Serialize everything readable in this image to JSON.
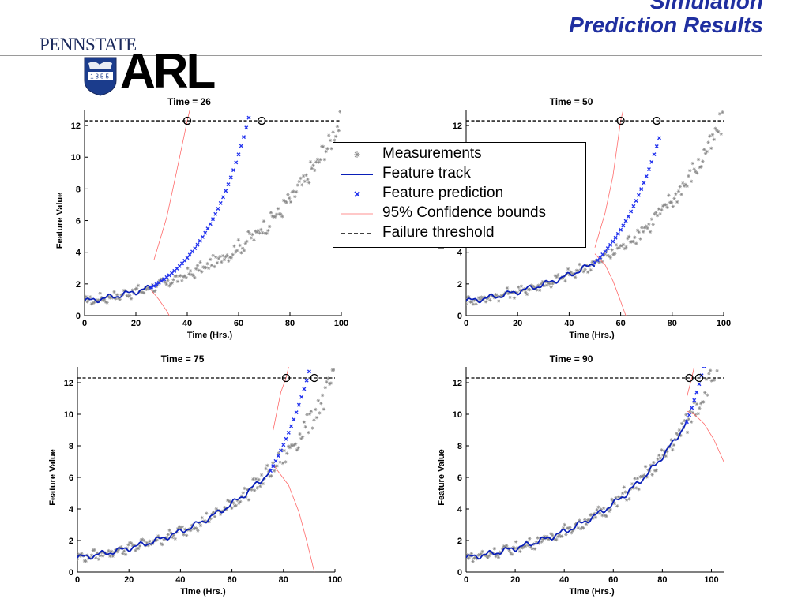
{
  "header": {
    "title_line1": "Simulation",
    "title_line2": "Prediction Results"
  },
  "logos": {
    "pennstate": "PENNSTATE",
    "shield_year": "1855",
    "arl": "ARL"
  },
  "colors": {
    "title": "#1f2fa0",
    "measurements": "#8a8a8a",
    "track": "#0a1fb8",
    "prediction": "#2233ee",
    "confidence": "#ff6b6b",
    "threshold": "#000000"
  },
  "legend": {
    "items": [
      {
        "label": "Measurements",
        "symbol": "star-marker"
      },
      {
        "label": "Feature track",
        "symbol": "solid-line"
      },
      {
        "label": "Feature prediction",
        "symbol": "x-marker"
      },
      {
        "label": "95% Confidence bounds",
        "symbol": "thin-line"
      },
      {
        "label": "Failure threshold",
        "symbol": "dashed-line"
      }
    ]
  },
  "chart_data": [
    {
      "type": "line",
      "title": "Time = 26",
      "xlabel": "Time (Hrs.)",
      "ylabel": "Feature Value",
      "xlim": [
        0,
        100
      ],
      "ylim": [
        0,
        13
      ],
      "xticks": [
        0,
        20,
        40,
        60,
        80,
        100
      ],
      "yticks": [
        0,
        2,
        4,
        6,
        8,
        10,
        12
      ],
      "threshold": 12.3,
      "current_time": 26,
      "measurements": {
        "x_start": 0,
        "x_end": 100
      },
      "track": {
        "x_start": 0,
        "x_end": 26
      },
      "prediction": {
        "x_start": 26,
        "x_end": 71,
        "growth": 0.0513
      },
      "upper_bound": [
        [
          27,
          3.5
        ],
        [
          32,
          6.2
        ],
        [
          36,
          9.2
        ],
        [
          40,
          12.3
        ],
        [
          41,
          13.0
        ]
      ],
      "lower_bound": [
        [
          26,
          1.6
        ],
        [
          29,
          1.0
        ],
        [
          32,
          0.3
        ],
        [
          33,
          0.0
        ]
      ],
      "crossings": [
        40,
        69
      ]
    },
    {
      "type": "line",
      "title": "Time = 50",
      "xlabel": "Time (Hrs.)",
      "ylabel": "Feature Value",
      "xlim": [
        0,
        100
      ],
      "ylim": [
        0,
        13
      ],
      "xticks": [
        0,
        20,
        40,
        60,
        80,
        100
      ],
      "yticks": [
        0,
        2,
        4,
        6,
        8,
        10,
        12
      ],
      "threshold": 12.3,
      "current_time": 50,
      "measurements": {
        "x_start": 0,
        "x_end": 100
      },
      "track": {
        "x_start": 0,
        "x_end": 50
      },
      "prediction": {
        "x_start": 50,
        "x_end": 75,
        "growth": 0.0485
      },
      "upper_bound": [
        [
          50,
          4.3
        ],
        [
          54,
          6.5
        ],
        [
          57,
          8.8
        ],
        [
          60,
          12.3
        ],
        [
          61,
          13.0
        ]
      ],
      "lower_bound": [
        [
          50,
          3.9
        ],
        [
          54,
          3.2
        ],
        [
          57,
          2.2
        ],
        [
          60,
          0.9
        ],
        [
          62,
          0.0
        ]
      ],
      "crossings": [
        60,
        74
      ]
    },
    {
      "type": "line",
      "title": "Time = 75",
      "xlabel": "Time (Hrs.)",
      "ylabel": "Feature Value",
      "xlim": [
        0,
        100
      ],
      "ylim": [
        0,
        13
      ],
      "xticks": [
        0,
        20,
        40,
        60,
        80,
        100
      ],
      "yticks": [
        0,
        2,
        4,
        6,
        8,
        10,
        12
      ],
      "threshold": 12.3,
      "current_time": 75,
      "measurements": {
        "x_start": 0,
        "x_end": 100
      },
      "track": {
        "x_start": 0,
        "x_end": 75
      },
      "prediction": {
        "x_start": 75,
        "x_end": 95,
        "growth": 0.0455
      },
      "upper_bound": [
        [
          76,
          9.0
        ],
        [
          79,
          11.4
        ],
        [
          81,
          12.3
        ],
        [
          82,
          13.0
        ]
      ],
      "lower_bound": [
        [
          76,
          6.8
        ],
        [
          82,
          5.5
        ],
        [
          86,
          3.8
        ],
        [
          89,
          2.0
        ],
        [
          92,
          0.0
        ]
      ],
      "crossings": [
        81,
        92
      ]
    },
    {
      "type": "line",
      "title": "Time = 90",
      "xlabel": "Time (Hrs.)",
      "ylabel": "Feature Value",
      "xlim": [
        0,
        105
      ],
      "ylim": [
        0,
        13
      ],
      "xticks": [
        0,
        20,
        40,
        60,
        80,
        100
      ],
      "yticks": [
        0,
        2,
        4,
        6,
        8,
        10,
        12
      ],
      "threshold": 12.3,
      "current_time": 90,
      "measurements": {
        "x_start": 0,
        "x_end": 105
      },
      "track": {
        "x_start": 0,
        "x_end": 90
      },
      "prediction": {
        "x_start": 90,
        "x_end": 97,
        "growth": 0.045
      },
      "upper_bound": [
        [
          90,
          11.1
        ],
        [
          92,
          12.3
        ],
        [
          93,
          13.0
        ]
      ],
      "lower_bound": [
        [
          90,
          10.2
        ],
        [
          93,
          10.0
        ],
        [
          97,
          9.4
        ],
        [
          101,
          8.4
        ],
        [
          105,
          7.0
        ]
      ],
      "crossings": [
        91,
        95
      ]
    }
  ]
}
